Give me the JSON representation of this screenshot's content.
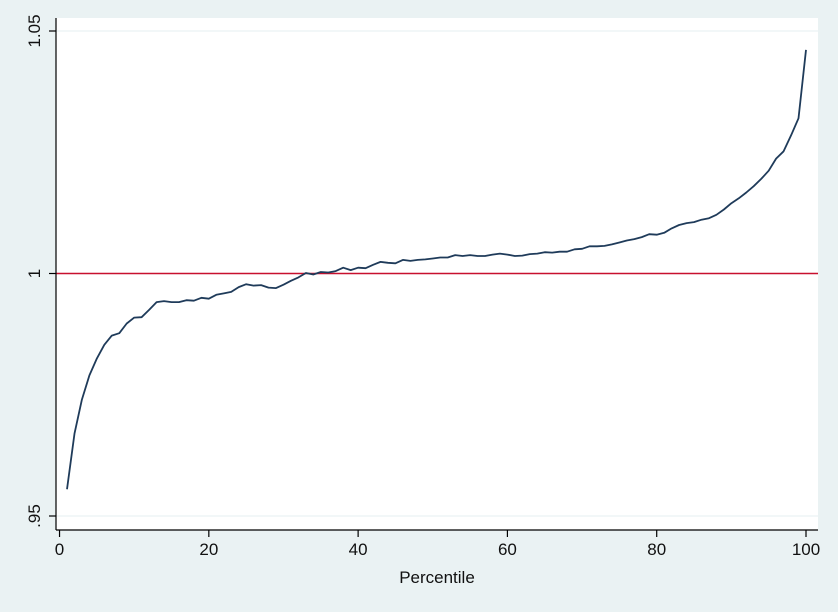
{
  "chart_data": {
    "type": "line",
    "title": "",
    "xlabel": "Percentile",
    "ylabel": "",
    "xlim": [
      0,
      100
    ],
    "ylim": [
      0.95,
      1.05
    ],
    "x_ticks": [
      0,
      20,
      40,
      60,
      80,
      100
    ],
    "x_tick_labels": [
      "0",
      "20",
      "40",
      "60",
      "80",
      "100"
    ],
    "y_ticks": [
      0.95,
      1.0,
      1.05
    ],
    "y_tick_labels": [
      ".95",
      "1",
      "1.05"
    ],
    "grid": "horizontal",
    "legend": "none",
    "reference_line": {
      "y": 1.0,
      "color": "#c8102e"
    },
    "series": [
      {
        "color": "#1f3b5a",
        "x": [
          1,
          2,
          3,
          4,
          5,
          6,
          7,
          8,
          9,
          10,
          11,
          12,
          13,
          14,
          15,
          16,
          17,
          18,
          19,
          20,
          21,
          22,
          23,
          24,
          25,
          26,
          27,
          28,
          29,
          30,
          31,
          32,
          33,
          34,
          35,
          36,
          37,
          38,
          39,
          40,
          41,
          42,
          43,
          44,
          45,
          46,
          47,
          48,
          49,
          50,
          51,
          52,
          53,
          54,
          55,
          56,
          57,
          58,
          59,
          60,
          61,
          62,
          63,
          64,
          65,
          66,
          67,
          68,
          69,
          70,
          71,
          72,
          73,
          74,
          75,
          76,
          77,
          78,
          79,
          80,
          81,
          82,
          83,
          84,
          85,
          86,
          87,
          88,
          89,
          90,
          91,
          92,
          93,
          94,
          95,
          96,
          97,
          98,
          99,
          100
        ],
        "values": [
          0.9555,
          0.967,
          0.974,
          0.979,
          0.9825,
          0.9853,
          0.9872,
          0.9877,
          0.9897,
          0.9909,
          0.991,
          0.9925,
          0.9941,
          0.9943,
          0.9941,
          0.9941,
          0.9945,
          0.9944,
          0.995,
          0.9948,
          0.9956,
          0.9959,
          0.9962,
          0.9972,
          0.9978,
          0.9975,
          0.9976,
          0.9971,
          0.997,
          0.9977,
          0.9985,
          0.9992,
          1.0001,
          0.9998,
          1.0003,
          1.0002,
          1.0005,
          1.0012,
          1.0007,
          1.0012,
          1.0011,
          1.0018,
          1.0024,
          1.0022,
          1.0021,
          1.0028,
          1.0026,
          1.0028,
          1.0029,
          1.0031,
          1.0033,
          1.0033,
          1.0038,
          1.0036,
          1.0038,
          1.0036,
          1.0036,
          1.0039,
          1.0041,
          1.0039,
          1.0036,
          1.0037,
          1.004,
          1.0041,
          1.0044,
          1.0043,
          1.0045,
          1.0045,
          1.005,
          1.0051,
          1.0056,
          1.0056,
          1.0057,
          1.006,
          1.0064,
          1.0068,
          1.0071,
          1.0075,
          1.0081,
          1.008,
          1.0084,
          1.0093,
          1.01,
          1.0104,
          1.0106,
          1.0111,
          1.0114,
          1.0121,
          1.0132,
          1.0145,
          1.0155,
          1.0167,
          1.018,
          1.0195,
          1.0212,
          1.0237,
          1.0252,
          1.0285,
          1.032,
          1.0461
        ]
      }
    ]
  }
}
